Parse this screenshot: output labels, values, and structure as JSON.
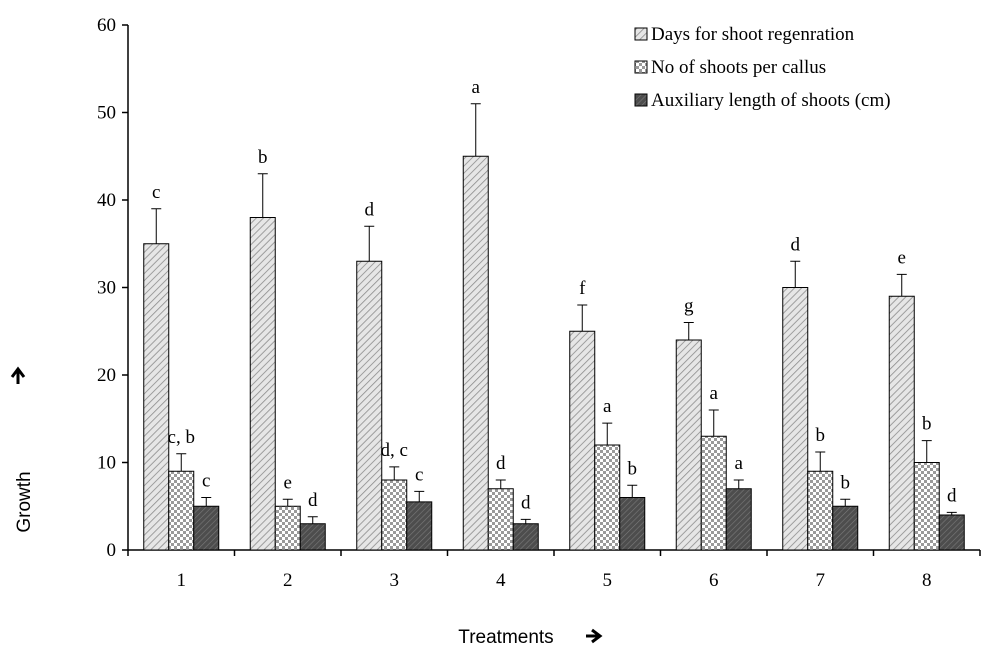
{
  "chart_data": {
    "type": "bar",
    "xlabel": "Treatments",
    "ylabel": "Growth",
    "ylim": [
      0,
      60
    ],
    "yticks": [
      0,
      10,
      20,
      30,
      40,
      50,
      60
    ],
    "categories": [
      "1",
      "2",
      "3",
      "4",
      "5",
      "6",
      "7",
      "8"
    ],
    "grid": false,
    "legend_position": "top-right",
    "series": [
      {
        "name": "Days for shoot regenration",
        "values": [
          35,
          38,
          33,
          45,
          25,
          24,
          30,
          29
        ],
        "errors": [
          4,
          5,
          4,
          6,
          3,
          2,
          3,
          2.5
        ],
        "labels": [
          "c",
          "b",
          "d",
          "a",
          "f",
          "g",
          "d",
          "e"
        ],
        "pattern": "diagonal",
        "color": "#d9d9d9"
      },
      {
        "name": "No of shoots per callus",
        "values": [
          9,
          5,
          8,
          7,
          12,
          13,
          9,
          10
        ],
        "errors": [
          2,
          0.8,
          1.5,
          1,
          2.5,
          3,
          2.2,
          2.5
        ],
        "labels": [
          "c, b",
          "e",
          "d, c",
          "d",
          "a",
          "a",
          "b",
          "b"
        ],
        "pattern": "checker",
        "color": "#f2f2f2"
      },
      {
        "name": "Auxiliary length of shoots (cm)",
        "values": [
          5,
          3,
          5.5,
          3,
          6,
          7,
          5,
          4
        ],
        "errors": [
          1,
          0.8,
          1.2,
          0.5,
          1.4,
          1,
          0.8,
          0.3
        ],
        "labels": [
          "c",
          "d",
          "c",
          "d",
          "b",
          "a",
          "b",
          "d"
        ],
        "pattern": "dense",
        "color": "#595959"
      }
    ]
  }
}
